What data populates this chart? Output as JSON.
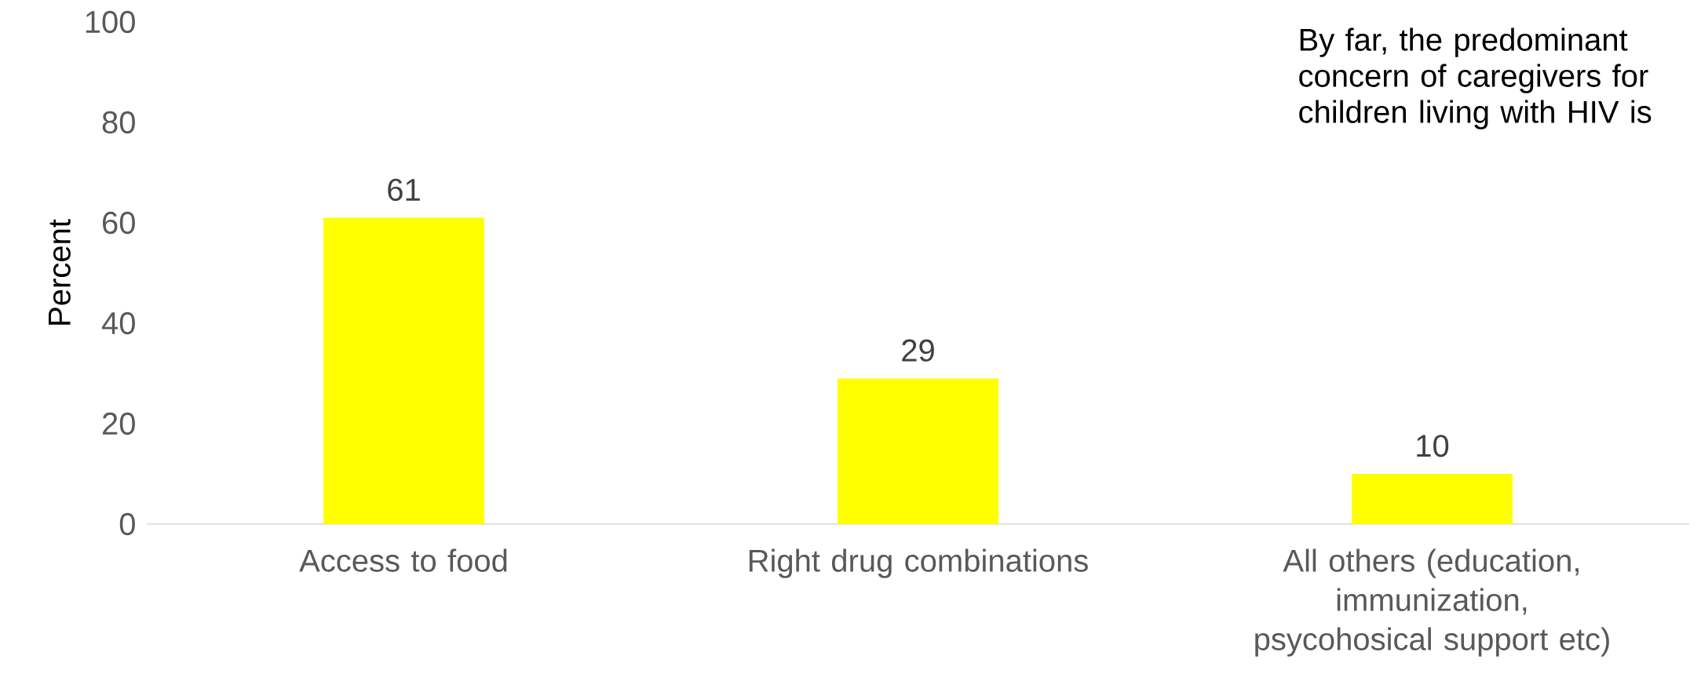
{
  "chart_data": {
    "type": "bar",
    "ylabel": "Percent",
    "categories": [
      "Access to food",
      "Right drug combinations",
      "All others (education, immunization, psycohosical support etc)"
    ],
    "values": [
      61,
      29,
      10
    ],
    "color": "#ffff00",
    "ylim": [
      0,
      100
    ],
    "yticks": [
      0,
      20,
      40,
      60,
      80,
      100
    ],
    "data_labels": true,
    "annotations": [
      "By far, the predominant concern of caregivers for children living with HIV is"
    ]
  }
}
